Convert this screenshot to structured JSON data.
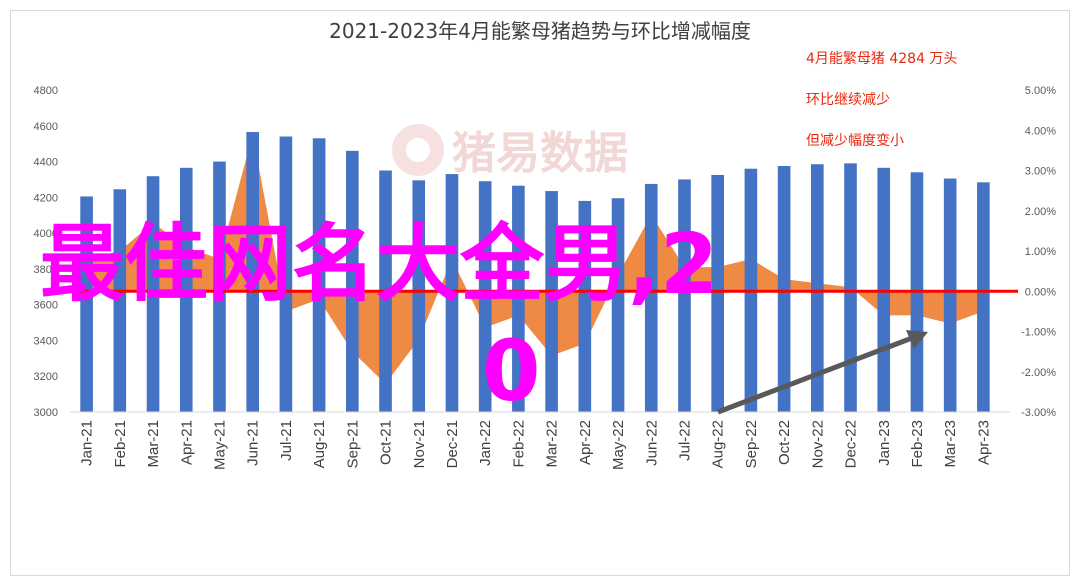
{
  "chart_data": {
    "type": "bar",
    "title": "2021-2023年4月能繁母猪趋势与环比增减幅度",
    "categories": [
      "Jan-21",
      "Feb-21",
      "Mar-21",
      "Apr-21",
      "May-21",
      "Jun-21",
      "Jul-21",
      "Aug-21",
      "Sep-21",
      "Oct-21",
      "Nov-21",
      "Dec-21",
      "Jan-22",
      "Feb-22",
      "Mar-22",
      "Apr-22",
      "May-22",
      "Jun-22",
      "Jul-22",
      "Aug-22",
      "Sep-22",
      "Oct-22",
      "Nov-22",
      "Dec-22",
      "Jan-23",
      "Feb-23",
      "Mar-23",
      "Apr-23"
    ],
    "series": [
      {
        "type": "bar",
        "axis": "left",
        "color": "#4472c4",
        "values": [
          4205,
          4245,
          4318,
          4365,
          4400,
          4565,
          4540,
          4530,
          4460,
          4350,
          4295,
          4330,
          4290,
          4265,
          4235,
          4180,
          4195,
          4275,
          4300,
          4325,
          4360,
          4375,
          4385,
          4390,
          4365,
          4340,
          4305,
          4284
        ]
      },
      {
        "type": "area",
        "axis": "right",
        "color": "#ed7d31",
        "values": [
          0.8,
          1.0,
          1.7,
          1.1,
          0.8,
          3.9,
          -0.5,
          -0.2,
          -1.5,
          -2.3,
          -1.2,
          0.8,
          -0.9,
          -0.6,
          -1.6,
          -1.3,
          0.4,
          1.9,
          0.6,
          0.6,
          0.8,
          0.3,
          0.2,
          0.1,
          -0.6,
          -0.6,
          -0.8,
          -0.5
        ]
      }
    ],
    "ylim_left": [
      3000,
      4800
    ],
    "yticks_left": [
      3000,
      3200,
      3400,
      3600,
      3800,
      4000,
      4200,
      4400,
      4600,
      4800
    ],
    "ylim_right": [
      -3,
      5
    ],
    "yticks_right": [
      "-3.00%",
      "-2.00%",
      "-1.00%",
      "0.00%",
      "1.00%",
      "2.00%",
      "3.00%",
      "4.00%",
      "5.00%"
    ],
    "annotations": [
      "4月能繁母猪 4284 万头",
      "环比继续减少",
      "但减少幅度变小"
    ],
    "grid": false,
    "zero_line_color": "#ff0000",
    "arrow_color": "#595959"
  },
  "watermark": "猪易数据",
  "overlay_text": [
    "最佳网名大全男,2",
    "0"
  ]
}
